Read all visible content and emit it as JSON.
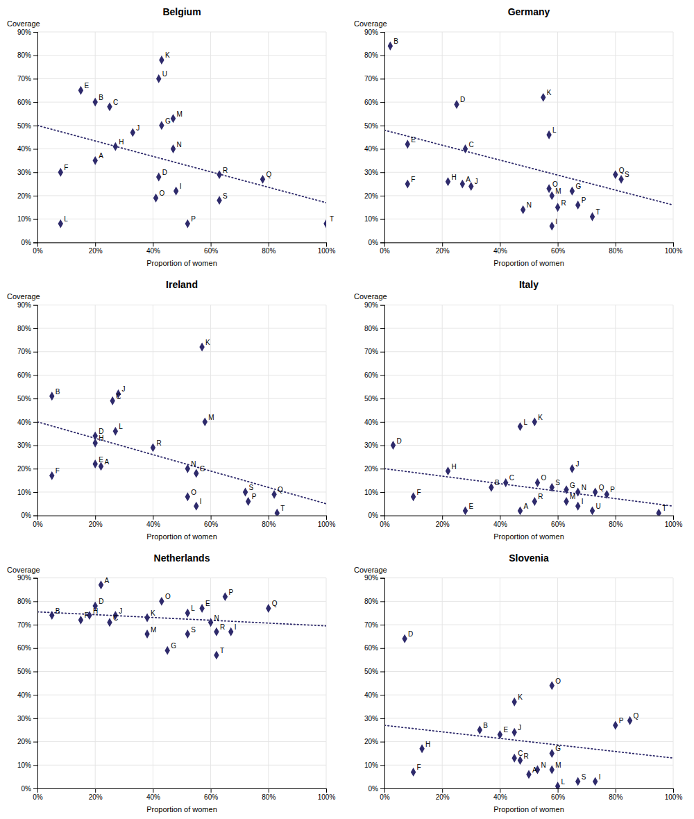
{
  "chart_data": [
    {
      "type": "scatter",
      "title": "Belgium",
      "xlabel": "Proportion of women",
      "ylabel": "Coverage",
      "color": "#2E2A6B",
      "grid": true,
      "xlim": [
        0,
        1.0
      ],
      "ylim": [
        0,
        0.9
      ],
      "xticks": [
        {
          "value": 0,
          "label": "0%"
        },
        {
          "value": 0.2,
          "label": "20%"
        },
        {
          "value": 0.4,
          "label": "40%"
        },
        {
          "value": 0.6,
          "label": "60%"
        },
        {
          "value": 0.8,
          "label": "80%"
        },
        {
          "value": 1.0,
          "label": "100%"
        }
      ],
      "yticks": [
        {
          "value": 0,
          "label": "0%"
        },
        {
          "value": 0.1,
          "label": "10%"
        },
        {
          "value": 0.2,
          "label": "20%"
        },
        {
          "value": 0.3,
          "label": "30%"
        },
        {
          "value": 0.4,
          "label": "40%"
        },
        {
          "value": 0.5,
          "label": "50%"
        },
        {
          "value": 0.6,
          "label": "60%"
        },
        {
          "value": 0.7,
          "label": "70%"
        },
        {
          "value": 0.8,
          "label": "80%"
        },
        {
          "value": 0.9,
          "label": "90%"
        }
      ],
      "series": [
        {
          "type": "scatter",
          "color": "#2E2A6B",
          "marker": "diamond",
          "x": [
            0.2,
            0.2,
            0.25,
            0.42,
            0.15,
            0.08,
            0.43,
            0.27,
            0.48,
            0.33,
            0.43,
            0.08,
            0.47,
            0.47,
            0.41,
            0.52,
            0.78,
            0.63,
            0.63,
            1.0,
            0.42
          ],
          "values": [
            0.35,
            0.6,
            0.58,
            0.28,
            0.65,
            0.3,
            0.5,
            0.41,
            0.22,
            0.47,
            0.78,
            0.08,
            0.53,
            0.4,
            0.19,
            0.08,
            0.27,
            0.29,
            0.18,
            0.08,
            0.7
          ],
          "annotations": [
            "A",
            "B",
            "C",
            "D",
            "E",
            "F",
            "G",
            "H",
            "I",
            "J",
            "K",
            "L",
            "M",
            "N",
            "O",
            "P",
            "Q",
            "R",
            "S",
            "T",
            "U"
          ]
        },
        {
          "type": "line",
          "color": "#2E2A6B",
          "line_style": "dotted",
          "x": [
            0.0,
            1.0
          ],
          "values": [
            0.5,
            0.17
          ]
        }
      ]
    },
    {
      "type": "scatter",
      "title": "Germany",
      "xlabel": "Proportion of women",
      "ylabel": "Coverage",
      "color": "#2E2A6B",
      "grid": true,
      "xlim": [
        0,
        1.0
      ],
      "ylim": [
        0,
        0.9
      ],
      "xticks": [
        {
          "value": 0,
          "label": "0%"
        },
        {
          "value": 0.2,
          "label": "20%"
        },
        {
          "value": 0.4,
          "label": "40%"
        },
        {
          "value": 0.6,
          "label": "60%"
        },
        {
          "value": 0.8,
          "label": "80%"
        },
        {
          "value": 1.0,
          "label": "100%"
        }
      ],
      "yticks": [
        {
          "value": 0,
          "label": "0%"
        },
        {
          "value": 0.1,
          "label": "10%"
        },
        {
          "value": 0.2,
          "label": "20%"
        },
        {
          "value": 0.3,
          "label": "30%"
        },
        {
          "value": 0.4,
          "label": "40%"
        },
        {
          "value": 0.5,
          "label": "50%"
        },
        {
          "value": 0.6,
          "label": "60%"
        },
        {
          "value": 0.7,
          "label": "70%"
        },
        {
          "value": 0.8,
          "label": "80%"
        },
        {
          "value": 0.9,
          "label": "90%"
        }
      ],
      "series": [
        {
          "type": "scatter",
          "color": "#2E2A6B",
          "marker": "diamond",
          "x": [
            0.27,
            0.02,
            0.28,
            0.25,
            0.08,
            0.08,
            0.65,
            0.22,
            0.58,
            0.3,
            0.55,
            0.57,
            0.58,
            0.48,
            0.57,
            0.67,
            0.8,
            0.6,
            0.82,
            0.72
          ],
          "values": [
            0.25,
            0.84,
            0.4,
            0.59,
            0.42,
            0.25,
            0.22,
            0.26,
            0.07,
            0.24,
            0.62,
            0.46,
            0.2,
            0.14,
            0.23,
            0.16,
            0.29,
            0.15,
            0.27,
            0.11
          ],
          "annotations": [
            "A",
            "B",
            "C",
            "D",
            "E",
            "F",
            "G",
            "H",
            "I",
            "J",
            "K",
            "L",
            "M",
            "N",
            "O",
            "P",
            "Q",
            "R",
            "S",
            "T"
          ]
        },
        {
          "type": "line",
          "color": "#2E2A6B",
          "line_style": "dotted",
          "x": [
            0.0,
            1.0
          ],
          "values": [
            0.48,
            0.16
          ]
        }
      ]
    },
    {
      "type": "scatter",
      "title": "Ireland",
      "xlabel": "Proportion of women",
      "ylabel": "Coverage",
      "color": "#2E2A6B",
      "grid": true,
      "xlim": [
        0,
        1.0
      ],
      "ylim": [
        0,
        0.9
      ],
      "xticks": [
        {
          "value": 0,
          "label": "0%"
        },
        {
          "value": 0.2,
          "label": "20%"
        },
        {
          "value": 0.4,
          "label": "40%"
        },
        {
          "value": 0.6,
          "label": "60%"
        },
        {
          "value": 0.8,
          "label": "80%"
        },
        {
          "value": 1.0,
          "label": "100%"
        }
      ],
      "yticks": [
        {
          "value": 0,
          "label": "0%"
        },
        {
          "value": 0.1,
          "label": "10%"
        },
        {
          "value": 0.2,
          "label": "20%"
        },
        {
          "value": 0.3,
          "label": "30%"
        },
        {
          "value": 0.4,
          "label": "40%"
        },
        {
          "value": 0.5,
          "label": "50%"
        },
        {
          "value": 0.6,
          "label": "60%"
        },
        {
          "value": 0.7,
          "label": "70%"
        },
        {
          "value": 0.8,
          "label": "80%"
        },
        {
          "value": 0.9,
          "label": "90%"
        }
      ],
      "series": [
        {
          "type": "scatter",
          "color": "#2E2A6B",
          "marker": "diamond",
          "x": [
            0.22,
            0.05,
            0.26,
            0.2,
            0.2,
            0.05,
            0.55,
            0.2,
            0.55,
            0.28,
            0.57,
            0.27,
            0.58,
            0.52,
            0.52,
            0.73,
            0.82,
            0.4,
            0.72,
            0.83
          ],
          "values": [
            0.21,
            0.51,
            0.49,
            0.34,
            0.22,
            0.17,
            0.18,
            0.31,
            0.04,
            0.52,
            0.72,
            0.36,
            0.4,
            0.2,
            0.08,
            0.06,
            0.09,
            0.29,
            0.1,
            0.01
          ],
          "annotations": [
            "A",
            "B",
            "C",
            "D",
            "E",
            "F",
            "G",
            "H",
            "I",
            "J",
            "K",
            "L",
            "M",
            "N",
            "O",
            "P",
            "Q",
            "R",
            "S",
            "T"
          ]
        },
        {
          "type": "line",
          "color": "#2E2A6B",
          "line_style": "dotted",
          "x": [
            0.0,
            1.0
          ],
          "values": [
            0.4,
            0.05
          ]
        }
      ]
    },
    {
      "type": "scatter",
      "title": "Italy",
      "xlabel": "Proportion of women",
      "ylabel": "Coverage",
      "color": "#2E2A6B",
      "grid": true,
      "xlim": [
        0,
        1.0
      ],
      "ylim": [
        0,
        0.9
      ],
      "xticks": [
        {
          "value": 0,
          "label": "0%"
        },
        {
          "value": 0.2,
          "label": "20%"
        },
        {
          "value": 0.4,
          "label": "40%"
        },
        {
          "value": 0.6,
          "label": "60%"
        },
        {
          "value": 0.8,
          "label": "80%"
        },
        {
          "value": 1.0,
          "label": "100%"
        }
      ],
      "yticks": [
        {
          "value": 0,
          "label": "0%"
        },
        {
          "value": 0.1,
          "label": "10%"
        },
        {
          "value": 0.2,
          "label": "20%"
        },
        {
          "value": 0.3,
          "label": "30%"
        },
        {
          "value": 0.4,
          "label": "40%"
        },
        {
          "value": 0.5,
          "label": "50%"
        },
        {
          "value": 0.6,
          "label": "60%"
        },
        {
          "value": 0.7,
          "label": "70%"
        },
        {
          "value": 0.8,
          "label": "80%"
        },
        {
          "value": 0.9,
          "label": "90%"
        }
      ],
      "series": [
        {
          "type": "scatter",
          "color": "#2E2A6B",
          "marker": "diamond",
          "x": [
            0.47,
            0.37,
            0.42,
            0.03,
            0.28,
            0.1,
            0.63,
            0.22,
            0.67,
            0.65,
            0.52,
            0.47,
            0.63,
            0.67,
            0.53,
            0.77,
            0.73,
            0.52,
            0.58,
            0.95,
            0.72
          ],
          "values": [
            0.02,
            0.12,
            0.14,
            0.3,
            0.02,
            0.08,
            0.11,
            0.19,
            0.04,
            0.2,
            0.4,
            0.38,
            0.06,
            0.1,
            0.14,
            0.09,
            0.1,
            0.06,
            0.12,
            0.01,
            0.02
          ],
          "annotations": [
            "A",
            "B",
            "C",
            "D",
            "E",
            "F",
            "G",
            "H",
            "I",
            "J",
            "K",
            "L",
            "M",
            "N",
            "O",
            "P",
            "Q",
            "R",
            "S",
            "T",
            "U"
          ]
        },
        {
          "type": "line",
          "color": "#2E2A6B",
          "line_style": "dotted",
          "x": [
            0.0,
            1.0
          ],
          "values": [
            0.2,
            0.04
          ]
        }
      ]
    },
    {
      "type": "scatter",
      "title": "Netherlands",
      "xlabel": "Proportion of women",
      "ylabel": "Coverage",
      "color": "#2E2A6B",
      "grid": true,
      "xlim": [
        0,
        1.0
      ],
      "ylim": [
        0,
        0.9
      ],
      "xticks": [
        {
          "value": 0,
          "label": "0%"
        },
        {
          "value": 0.2,
          "label": "20%"
        },
        {
          "value": 0.4,
          "label": "40%"
        },
        {
          "value": 0.6,
          "label": "60%"
        },
        {
          "value": 0.8,
          "label": "80%"
        },
        {
          "value": 1.0,
          "label": "100%"
        }
      ],
      "yticks": [
        {
          "value": 0,
          "label": "0%"
        },
        {
          "value": 0.1,
          "label": "10%"
        },
        {
          "value": 0.2,
          "label": "20%"
        },
        {
          "value": 0.3,
          "label": "30%"
        },
        {
          "value": 0.4,
          "label": "40%"
        },
        {
          "value": 0.5,
          "label": "50%"
        },
        {
          "value": 0.6,
          "label": "60%"
        },
        {
          "value": 0.7,
          "label": "70%"
        },
        {
          "value": 0.8,
          "label": "80%"
        },
        {
          "value": 0.9,
          "label": "90%"
        }
      ],
      "series": [
        {
          "type": "scatter",
          "color": "#2E2A6B",
          "marker": "diamond",
          "x": [
            0.22,
            0.05,
            0.25,
            0.2,
            0.57,
            0.15,
            0.45,
            0.18,
            0.67,
            0.27,
            0.38,
            0.52,
            0.38,
            0.6,
            0.43,
            0.65,
            0.8,
            0.62,
            0.52,
            0.62
          ],
          "values": [
            0.87,
            0.74,
            0.71,
            0.78,
            0.77,
            0.72,
            0.59,
            0.74,
            0.67,
            0.74,
            0.73,
            0.75,
            0.66,
            0.71,
            0.8,
            0.82,
            0.77,
            0.67,
            0.66,
            0.57
          ],
          "annotations": [
            "A",
            "B",
            "C",
            "D",
            "E",
            "F",
            "G",
            "H",
            "I",
            "J",
            "K",
            "L",
            "M",
            "N",
            "O",
            "P",
            "Q",
            "R",
            "S",
            "T"
          ]
        },
        {
          "type": "line",
          "color": "#2E2A6B",
          "line_style": "dotted",
          "x": [
            0.0,
            1.0
          ],
          "values": [
            0.755,
            0.695
          ]
        }
      ]
    },
    {
      "type": "scatter",
      "title": "Slovenia",
      "xlabel": "Proportion of women",
      "ylabel": "Coverage",
      "color": "#2E2A6B",
      "grid": true,
      "xlim": [
        0,
        1.0
      ],
      "ylim": [
        0,
        0.9
      ],
      "xticks": [
        {
          "value": 0,
          "label": "0%"
        },
        {
          "value": 0.2,
          "label": "20%"
        },
        {
          "value": 0.4,
          "label": "40%"
        },
        {
          "value": 0.6,
          "label": "60%"
        },
        {
          "value": 0.8,
          "label": "80%"
        },
        {
          "value": 1.0,
          "label": "100%"
        }
      ],
      "yticks": [
        {
          "value": 0,
          "label": "0%"
        },
        {
          "value": 0.1,
          "label": "10%"
        },
        {
          "value": 0.2,
          "label": "20%"
        },
        {
          "value": 0.3,
          "label": "30%"
        },
        {
          "value": 0.4,
          "label": "40%"
        },
        {
          "value": 0.5,
          "label": "50%"
        },
        {
          "value": 0.6,
          "label": "60%"
        },
        {
          "value": 0.7,
          "label": "70%"
        },
        {
          "value": 0.8,
          "label": "80%"
        },
        {
          "value": 0.9,
          "label": "90%"
        }
      ],
      "series": [
        {
          "type": "scatter",
          "color": "#2E2A6B",
          "marker": "diamond",
          "x": [
            0.5,
            0.33,
            0.45,
            0.07,
            0.4,
            0.1,
            0.58,
            0.13,
            0.73,
            0.45,
            0.45,
            0.6,
            0.58,
            0.53,
            0.58,
            0.8,
            0.85,
            0.47,
            0.67
          ],
          "values": [
            0.06,
            0.25,
            0.13,
            0.64,
            0.23,
            0.07,
            0.15,
            0.17,
            0.03,
            0.24,
            0.37,
            0.01,
            0.08,
            0.08,
            0.44,
            0.27,
            0.29,
            0.12,
            0.03
          ],
          "annotations": [
            "A",
            "B",
            "C",
            "D",
            "E",
            "F",
            "G",
            "H",
            "I",
            "J",
            "K",
            "L",
            "M",
            "N",
            "O",
            "P",
            "Q",
            "R",
            "S"
          ]
        },
        {
          "type": "line",
          "color": "#2E2A6B",
          "line_style": "dotted",
          "x": [
            0.0,
            1.0
          ],
          "values": [
            0.27,
            0.13
          ]
        }
      ]
    }
  ]
}
